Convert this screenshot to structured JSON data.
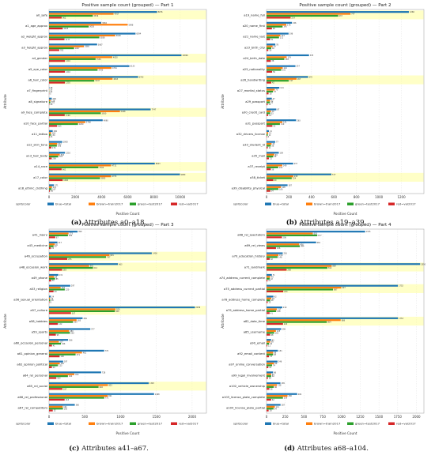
{
  "colors": {
    "total": "#1f77b4",
    "train": "#ff7f0e",
    "test": "#2ca02c",
    "val": "#d62728",
    "highlight": "#ffff99",
    "grid": "#dddddd"
  },
  "legend": {
    "title": "split/color",
    "entries": [
      "blue=total",
      "brown=train2017",
      "green=test2017",
      "red=val2017"
    ]
  },
  "chart_data": [
    {
      "type": "bar",
      "orientation": "horizontal",
      "title": "Positive sample count (grouped) — Part 1",
      "xlabel": "Positive Count",
      "ylabel": "Attribute",
      "xlim": [
        0,
        12000
      ],
      "xticks": [
        0,
        2000,
        4000,
        6000,
        8000,
        10000
      ],
      "categories": [
        "a0_safe",
        "a1_age_approx",
        "a2_weight_approx",
        "a3_height_approx",
        "a4_gender",
        "a5_eye_color",
        "a6_hair_color",
        "a7_fingerprint",
        "a8_signature",
        "a9_face_complete",
        "a10_face_partial",
        "a11_tattoo",
        "a12_skin_tone",
        "a13_hair_body",
        "a14_race",
        "a17_color",
        "a18_ethnic_clothing"
      ],
      "highlight": [
        "a0_safe",
        "a4_gender",
        "a6_hair_color",
        "a9_face_complete",
        "a14_race",
        "a17_color"
      ],
      "series": [
        {
          "name": "blue=total",
          "values": [
            8236,
            3984,
            6594,
            3667,
            10096,
            6123,
            6792,
            28,
            209,
            7747,
            4090,
            280,
            1008,
            1210,
            8063,
            9980,
            371
          ]
        },
        {
          "name": "brown=train2017",
          "values": [
            4917,
            5998,
            5048,
            2660,
            4820,
            4761,
            4843,
            20,
            118,
            5408,
            2768,
            164,
            622,
            818,
            4731,
            4733,
            221
          ]
        },
        {
          "name": "green=test2017",
          "values": [
            3336,
            3026,
            3838,
            1907,
            3550,
            3700,
            3447,
            16,
            102,
            3950,
            2209,
            130,
            596,
            703,
            3760,
            3893,
            197
          ]
        },
        {
          "name": "red=val2017",
          "values": [
            962,
            1045,
            1177,
            782,
            1210,
            1210,
            1210,
            5,
            26,
            1196,
            615,
            41,
            176,
            206,
            961,
            1040,
            66
          ]
        }
      ]
    },
    {
      "type": "bar",
      "orientation": "horizontal",
      "title": "Positive sample count (grouped) — Part 2",
      "xlabel": "Positive Count",
      "ylabel": "Attribute",
      "xlim": [
        0,
        1400
      ],
      "xticks": [
        0,
        200,
        400,
        600,
        800,
        1000,
        1200
      ],
      "categories": [
        "a19_name_full",
        "a20_name_first",
        "a21_name_last",
        "a23_birth_city",
        "a24_birth_date",
        "a25_nationality",
        "a26_handwriting",
        "a27_marital_status",
        "a29_passport",
        "a30_credit_card",
        "a31_passport",
        "a32_drivers_license",
        "a33_student_id",
        "a35_mail",
        "a37_receipt",
        "a38_ticket",
        "a39_disability_physical"
      ],
      "highlight": [
        "a19_name_full",
        "a26_handwriting",
        "a38_ticket"
      ],
      "series": [
        {
          "name": "blue=total",
          "values": [
            1266,
            226,
            196,
            78,
            378,
            257,
            370,
            114,
            47,
            87,
            263,
            21,
            77,
            109,
            237,
            577,
            187
          ]
        },
        {
          "name": "brown=train2017",
          "values": [
            747,
            176,
            123,
            54,
            179,
            144,
            267,
            73,
            32,
            39,
            141,
            15,
            45,
            69,
            140,
            238,
            128
          ]
        },
        {
          "name": "green=test2017",
          "values": [
            637,
            143,
            111,
            42,
            158,
            131,
            197,
            57,
            30,
            33,
            119,
            11,
            38,
            59,
            104,
            224,
            106
          ]
        },
        {
          "name": "red=val2017",
          "values": [
            214,
            48,
            31,
            16,
            38,
            50,
            42,
            18,
            10,
            15,
            52,
            4,
            11,
            21,
            38,
            60,
            34
          ]
        }
      ]
    },
    {
      "type": "bar",
      "orientation": "horizontal",
      "title": "Positive sample count (grouped) — Part 3",
      "xlabel": "Positive Count",
      "ylabel": "Attribute",
      "xlim": [
        0,
        2200
      ],
      "xticks": [
        0,
        500,
        1000,
        1500,
        2000
      ],
      "categories": [
        "a41_injury",
        "a43_medicine",
        "a46_occupation",
        "a48_occasion_work",
        "a49_phone",
        "a53_religion",
        "a56_sexual_orientation",
        "a57_culture",
        "a58_hobbies",
        "a59_sports",
        "a60_occasion_personal",
        "a61_opinion_general",
        "a62_opinion_political",
        "a64_rel_personal",
        "a65_rel_social",
        "a66_rel_professional",
        "a67_rel_competitors"
      ],
      "highlight": [
        "a46_occupation",
        "a48_occasion_work",
        "a57_culture",
        "a65_rel_social"
      ],
      "series": [
        {
          "name": "blue=total",
          "values": [
            399,
            117,
            1436,
            963,
            131,
            297,
            24,
            2039,
            469,
            577,
            266,
            770,
            197,
            728,
            1393,
            1468,
            360
          ]
        },
        {
          "name": "brown=train2017",
          "values": [
            273,
            81,
            845,
            561,
            69,
            162,
            14,
            929,
            385,
            280,
            137,
            461,
            150,
            354,
            823,
            821,
            191
          ]
        },
        {
          "name": "green=test2017",
          "values": [
            264,
            63,
            797,
            614,
            85,
            220,
            18,
            920,
            335,
            292,
            166,
            371,
            123,
            264,
            692,
            772,
            195
          ]
        },
        {
          "name": "red=val2017",
          "values": [
            87,
            24,
            255,
            183,
            30,
            63,
            6,
            307,
            122,
            95,
            41,
            148,
            40,
            102,
            187,
            218,
            52
          ]
        }
      ]
    },
    {
      "type": "bar",
      "orientation": "horizontal",
      "title": "Positive sample count (grouped) — Part 4",
      "xlabel": "Positive Count",
      "ylabel": "Attribute",
      "xlim": [
        0,
        2100
      ],
      "xticks": [
        0,
        250,
        500,
        750,
        1000,
        1250,
        1500,
        1750,
        2000
      ],
      "categories": [
        "a68_rel_spectators",
        "a69_rel_views",
        "a70_education_history",
        "a71_landmark",
        "a74_address_current_complete",
        "a75_address_current_partial",
        "a78_address_home_complete",
        "a79_address_home_partial",
        "a82_date_time",
        "a85_username",
        "a90_email",
        "a92_email_content",
        "a97_online_conversation",
        "a99_legal_involvement",
        "a102_vehicle_ownership",
        "a103_license_plate_complete",
        "a104_license_plate_partial"
      ],
      "highlight": [
        "a71_landmark",
        "a75_address_current_partial",
        "a82_date_time"
      ],
      "series": [
        {
          "name": "blue=total",
          "values": [
            1315,
            661,
            216,
            2050,
            71,
            1752,
            92,
            210,
            1753,
            196,
            61,
            151,
            146,
            86,
            185,
            409,
            187
          ]
        },
        {
          "name": "brown=train2017",
          "values": [
            618,
            436,
            159,
            869,
            49,
            997,
            64,
            137,
            989,
            125,
            50,
            88,
            99,
            62,
            138,
            280,
            111
          ]
        },
        {
          "name": "green=test2017",
          "values": [
            677,
            444,
            148,
            812,
            42,
            887,
            48,
            128,
            804,
            102,
            34,
            87,
            74,
            62,
            96,
            219,
            94
          ]
        },
        {
          "name": "red=val2017",
          "values": [
            206,
            126,
            42,
            268,
            13,
            223,
            15,
            41,
            220,
            48,
            11,
            33,
            24,
            18,
            38,
            62,
            28
          ]
        }
      ]
    }
  ],
  "captions": [
    {
      "label": "(a)",
      "text": "Attributes a0–a18."
    },
    {
      "label": "(b)",
      "text": "Attributes a19–a39."
    },
    {
      "label": "(c)",
      "text": "Attributes a41–a67."
    },
    {
      "label": "(d)",
      "text": "Attributes a68–a104."
    }
  ]
}
